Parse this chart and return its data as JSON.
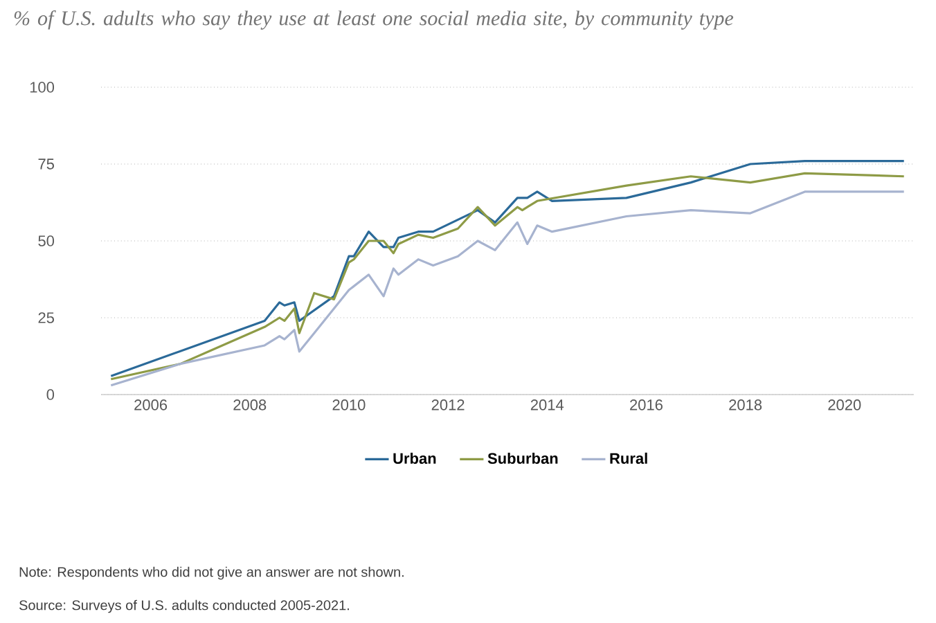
{
  "chart_data": {
    "type": "line",
    "title": "*% of U.S. adults who say they use at least one social media site, by community type*",
    "xlim": [
      2005,
      2021.4
    ],
    "ylim": [
      0,
      100
    ],
    "xticks": [
      2006,
      2008,
      2010,
      2012,
      2014,
      2016,
      2018,
      2020
    ],
    "yticks": [
      0,
      25,
      50,
      75,
      100
    ],
    "grid": "y",
    "legend": "bottom",
    "marker": "none",
    "line_style": "solid",
    "series": [
      {
        "name": "Urban",
        "color": "#2b6a99",
        "x": [
          2005.2,
          2008.3,
          2008.6,
          2008.7,
          2008.9,
          2009.0,
          2009.7,
          2010.0,
          2010.1,
          2010.4,
          2010.7,
          2010.9,
          2011.0,
          2011.4,
          2011.7,
          2012.6,
          2012.95,
          2013.4,
          2013.6,
          2013.8,
          2014.1,
          2015.6,
          2016.9,
          2018.1,
          2019.2,
          2021.2
        ],
        "values": [
          6,
          24,
          30,
          29,
          30,
          24,
          32,
          45,
          45,
          53,
          48,
          48,
          51,
          53,
          53,
          60,
          56,
          64,
          64,
          66,
          63,
          64,
          69,
          75,
          76,
          76
        ]
      },
      {
        "name": "Suburban",
        "color": "#8e9b46",
        "x": [
          2005.2,
          2006.6,
          2008.3,
          2008.6,
          2008.7,
          2008.9,
          2009.0,
          2009.3,
          2009.7,
          2010.0,
          2010.1,
          2010.4,
          2010.7,
          2010.9,
          2011.0,
          2011.4,
          2011.7,
          2012.2,
          2012.6,
          2012.95,
          2013.4,
          2013.5,
          2013.8,
          2015.6,
          2016.9,
          2018.1,
          2019.2,
          2021.2
        ],
        "values": [
          5,
          10,
          22,
          25,
          24,
          28,
          20,
          33,
          31,
          43,
          44,
          50,
          50,
          46,
          49,
          52,
          51,
          54,
          61,
          55,
          61,
          60,
          63,
          68,
          71,
          69,
          72,
          71
        ]
      },
      {
        "name": "Rural",
        "color": "#a7b3cf",
        "x": [
          2005.2,
          2006.6,
          2008.3,
          2008.6,
          2008.7,
          2008.9,
          2009.0,
          2009.3,
          2010.0,
          2010.4,
          2010.7,
          2010.9,
          2011.0,
          2011.4,
          2011.7,
          2012.2,
          2012.6,
          2012.95,
          2013.4,
          2013.6,
          2013.8,
          2014.1,
          2015.6,
          2016.9,
          2018.1,
          2019.2,
          2021.2
        ],
        "values": [
          3,
          10,
          16,
          19,
          18,
          21,
          14,
          20,
          34,
          39,
          32,
          41,
          39,
          44,
          42,
          45,
          50,
          47,
          56,
          49,
          55,
          53,
          58,
          60,
          59,
          66,
          66
        ]
      }
    ],
    "annotations": [
      "Note: Respondents who did not give an answer are not shown.",
      "Source: Surveys of U.S. adults conducted 2005-2021."
    ]
  }
}
